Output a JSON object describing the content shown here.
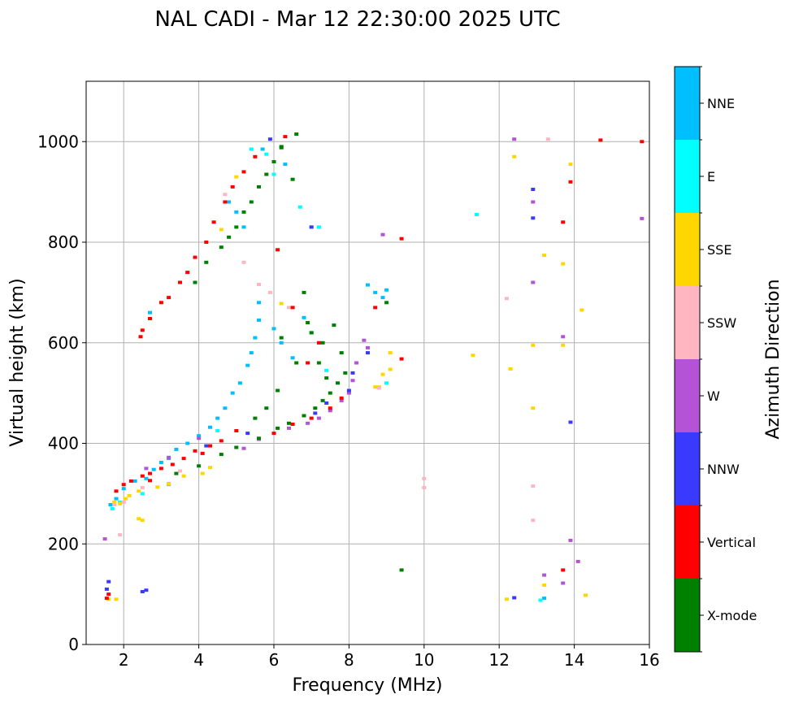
{
  "chart_data": {
    "type": "scatter",
    "title": "NAL CADI - Mar 12 22:30:00 2025 UTC",
    "xlabel": "Frequency (MHz)",
    "ylabel": "Virtual height (km)",
    "xlim": [
      1,
      16
    ],
    "ylim": [
      0,
      1120
    ],
    "xticks": [
      2,
      4,
      6,
      8,
      10,
      12,
      14,
      16
    ],
    "yticks": [
      0,
      200,
      400,
      600,
      800,
      1000
    ],
    "grid": true,
    "colorbar": {
      "label": "Azimuth Direction",
      "categories": [
        {
          "name": "X-mode",
          "color": "#008000"
        },
        {
          "name": "Vertical",
          "color": "#ff0000"
        },
        {
          "name": "NNW",
          "color": "#3a3aff"
        },
        {
          "name": "W",
          "color": "#b453d6"
        },
        {
          "name": "SSW",
          "color": "#ffb6c1"
        },
        {
          "name": "SSE",
          "color": "#ffd700"
        },
        {
          "name": "E",
          "color": "#00ffff"
        },
        {
          "name": "NNE",
          "color": "#00bfff"
        }
      ]
    },
    "series": [
      {
        "name": "NNE",
        "color": "#00bfff",
        "points": [
          [
            1.65,
            278
          ],
          [
            1.8,
            290
          ],
          [
            2.0,
            310
          ],
          [
            2.3,
            325
          ],
          [
            2.6,
            330
          ],
          [
            2.8,
            348
          ],
          [
            3.0,
            362
          ],
          [
            3.2,
            370
          ],
          [
            3.4,
            388
          ],
          [
            3.7,
            400
          ],
          [
            4.0,
            415
          ],
          [
            4.3,
            432
          ],
          [
            4.5,
            450
          ],
          [
            4.7,
            470
          ],
          [
            4.9,
            500
          ],
          [
            5.1,
            520
          ],
          [
            5.3,
            555
          ],
          [
            5.4,
            580
          ],
          [
            5.5,
            610
          ],
          [
            5.6,
            645
          ],
          [
            5.6,
            680
          ],
          [
            6.0,
            628
          ],
          [
            6.2,
            600
          ],
          [
            6.5,
            570
          ],
          [
            6.8,
            650
          ],
          [
            7.0,
            620
          ],
          [
            7.2,
            600
          ],
          [
            8.5,
            715
          ],
          [
            8.7,
            700
          ],
          [
            8.9,
            690
          ],
          [
            9.0,
            705
          ],
          [
            5.2,
            830
          ],
          [
            5.0,
            860
          ],
          [
            4.8,
            880
          ],
          [
            2.7,
            660
          ],
          [
            5.7,
            985
          ],
          [
            6.3,
            955
          ],
          [
            7.0,
            830
          ],
          [
            13.2,
            92
          ]
        ]
      },
      {
        "name": "E",
        "color": "#00ffff",
        "points": [
          [
            1.7,
            270
          ],
          [
            1.9,
            283
          ],
          [
            2.5,
            300
          ],
          [
            3.2,
            318
          ],
          [
            4.5,
            425
          ],
          [
            5.4,
            985
          ],
          [
            5.8,
            975
          ],
          [
            6.0,
            935
          ],
          [
            6.7,
            870
          ],
          [
            7.2,
            830
          ],
          [
            7.4,
            545
          ],
          [
            9.0,
            520
          ],
          [
            11.4,
            855
          ],
          [
            13.1,
            88
          ]
        ]
      },
      {
        "name": "SSE",
        "color": "#ffd700",
        "points": [
          [
            1.75,
            283
          ],
          [
            1.9,
            280
          ],
          [
            2.05,
            290
          ],
          [
            2.15,
            296
          ],
          [
            2.4,
            305
          ],
          [
            2.9,
            313
          ],
          [
            3.2,
            320
          ],
          [
            3.6,
            335
          ],
          [
            4.1,
            340
          ],
          [
            4.3,
            352
          ],
          [
            8.7,
            512
          ],
          [
            8.9,
            537
          ],
          [
            9.1,
            547
          ],
          [
            9.1,
            580
          ],
          [
            8.8,
            512
          ],
          [
            12.4,
            970
          ],
          [
            12.3,
            548
          ],
          [
            12.9,
            595
          ],
          [
            12.9,
            470
          ],
          [
            13.2,
            774
          ],
          [
            13.7,
            757
          ],
          [
            13.9,
            955
          ],
          [
            14.2,
            665
          ],
          [
            13.7,
            595
          ],
          [
            13.2,
            118
          ],
          [
            14.3,
            98
          ],
          [
            12.2,
            90
          ],
          [
            11.3,
            575
          ],
          [
            6.2,
            678
          ],
          [
            4.6,
            825
          ],
          [
            5.0,
            930
          ],
          [
            2.5,
            247
          ],
          [
            2.4,
            250
          ],
          [
            1.8,
            90
          ],
          [
            1.6,
            90
          ]
        ]
      },
      {
        "name": "SSW",
        "color": "#ffb6c1",
        "points": [
          [
            1.75,
            278
          ],
          [
            2.0,
            283
          ],
          [
            2.5,
            312
          ],
          [
            3.5,
            345
          ],
          [
            4.7,
            895
          ],
          [
            5.2,
            760
          ],
          [
            5.6,
            716
          ],
          [
            8.8,
            510
          ],
          [
            10.0,
            330
          ],
          [
            10.0,
            312
          ],
          [
            12.2,
            688
          ],
          [
            12.9,
            315
          ],
          [
            12.9,
            247
          ],
          [
            13.3,
            1005
          ],
          [
            5.9,
            700
          ],
          [
            6.4,
            670
          ],
          [
            1.9,
            218
          ]
        ]
      },
      {
        "name": "W",
        "color": "#b453d6",
        "points": [
          [
            1.5,
            210
          ],
          [
            2.6,
            350
          ],
          [
            3.2,
            372
          ],
          [
            4.0,
            410
          ],
          [
            5.2,
            390
          ],
          [
            5.6,
            408
          ],
          [
            6.4,
            430
          ],
          [
            6.9,
            440
          ],
          [
            7.2,
            450
          ],
          [
            7.5,
            465
          ],
          [
            7.8,
            485
          ],
          [
            8.0,
            500
          ],
          [
            8.1,
            525
          ],
          [
            8.2,
            560
          ],
          [
            8.4,
            605
          ],
          [
            8.5,
            590
          ],
          [
            8.9,
            815
          ],
          [
            12.4,
            1005
          ],
          [
            12.9,
            880
          ],
          [
            12.9,
            720
          ],
          [
            13.7,
            612
          ],
          [
            13.9,
            207
          ],
          [
            14.1,
            165
          ],
          [
            13.7,
            122
          ],
          [
            13.2,
            138
          ],
          [
            15.8,
            847
          ]
        ]
      },
      {
        "name": "NNW",
        "color": "#3a3aff",
        "points": [
          [
            1.55,
            110
          ],
          [
            1.6,
            125
          ],
          [
            2.5,
            105
          ],
          [
            2.6,
            108
          ],
          [
            4.2,
            395
          ],
          [
            5.3,
            420
          ],
          [
            7.1,
            460
          ],
          [
            7.4,
            480
          ],
          [
            8.0,
            505
          ],
          [
            8.1,
            540
          ],
          [
            8.5,
            580
          ],
          [
            12.4,
            93
          ],
          [
            12.9,
            905
          ],
          [
            12.9,
            848
          ],
          [
            13.9,
            442
          ],
          [
            5.9,
            1005
          ],
          [
            7.0,
            830
          ]
        ]
      },
      {
        "name": "Vertical",
        "color": "#ff0000",
        "points": [
          [
            1.55,
            92
          ],
          [
            1.6,
            100
          ],
          [
            1.8,
            305
          ],
          [
            2.0,
            318
          ],
          [
            2.2,
            325
          ],
          [
            2.5,
            335
          ],
          [
            2.7,
            340
          ],
          [
            3.0,
            350
          ],
          [
            3.3,
            358
          ],
          [
            3.6,
            370
          ],
          [
            3.9,
            385
          ],
          [
            4.1,
            380
          ],
          [
            4.3,
            395
          ],
          [
            4.6,
            405
          ],
          [
            5.0,
            425
          ],
          [
            6.0,
            420
          ],
          [
            6.5,
            438
          ],
          [
            7.0,
            450
          ],
          [
            7.5,
            470
          ],
          [
            7.8,
            490
          ],
          [
            2.45,
            612
          ],
          [
            2.5,
            625
          ],
          [
            2.7,
            648
          ],
          [
            3.0,
            680
          ],
          [
            3.2,
            690
          ],
          [
            3.5,
            720
          ],
          [
            3.7,
            740
          ],
          [
            3.9,
            770
          ],
          [
            4.2,
            800
          ],
          [
            4.4,
            840
          ],
          [
            4.7,
            880
          ],
          [
            4.9,
            910
          ],
          [
            5.2,
            940
          ],
          [
            5.5,
            970
          ],
          [
            6.3,
            1010
          ],
          [
            6.1,
            785
          ],
          [
            6.5,
            670
          ],
          [
            6.9,
            560
          ],
          [
            7.2,
            600
          ],
          [
            8.7,
            670
          ],
          [
            9.4,
            568
          ],
          [
            9.4,
            807
          ],
          [
            13.7,
            840
          ],
          [
            13.9,
            920
          ],
          [
            14.7,
            1003
          ],
          [
            15.8,
            1000
          ],
          [
            13.7,
            148
          ],
          [
            2.7,
            326
          ]
        ]
      },
      {
        "name": "X-mode",
        "color": "#008000",
        "points": [
          [
            3.4,
            340
          ],
          [
            4.0,
            355
          ],
          [
            4.6,
            378
          ],
          [
            5.0,
            392
          ],
          [
            5.6,
            410
          ],
          [
            6.1,
            430
          ],
          [
            6.4,
            440
          ],
          [
            6.8,
            455
          ],
          [
            7.1,
            470
          ],
          [
            7.3,
            485
          ],
          [
            7.5,
            500
          ],
          [
            7.7,
            520
          ],
          [
            7.9,
            540
          ],
          [
            6.1,
            505
          ],
          [
            5.8,
            470
          ],
          [
            5.5,
            450
          ],
          [
            3.9,
            720
          ],
          [
            4.2,
            760
          ],
          [
            4.6,
            790
          ],
          [
            4.8,
            810
          ],
          [
            5.0,
            830
          ],
          [
            5.2,
            860
          ],
          [
            5.4,
            880
          ],
          [
            5.6,
            910
          ],
          [
            5.8,
            935
          ],
          [
            6.0,
            960
          ],
          [
            6.2,
            990
          ],
          [
            6.5,
            925
          ],
          [
            6.8,
            700
          ],
          [
            6.9,
            640
          ],
          [
            7.0,
            620
          ],
          [
            7.2,
            560
          ],
          [
            7.4,
            530
          ],
          [
            7.3,
            600
          ],
          [
            7.6,
            635
          ],
          [
            7.8,
            580
          ],
          [
            6.6,
            560
          ],
          [
            6.2,
            610
          ],
          [
            9.0,
            680
          ],
          [
            9.4,
            148
          ],
          [
            6.6,
            1015
          ],
          [
            6.2,
            988
          ]
        ]
      }
    ]
  }
}
